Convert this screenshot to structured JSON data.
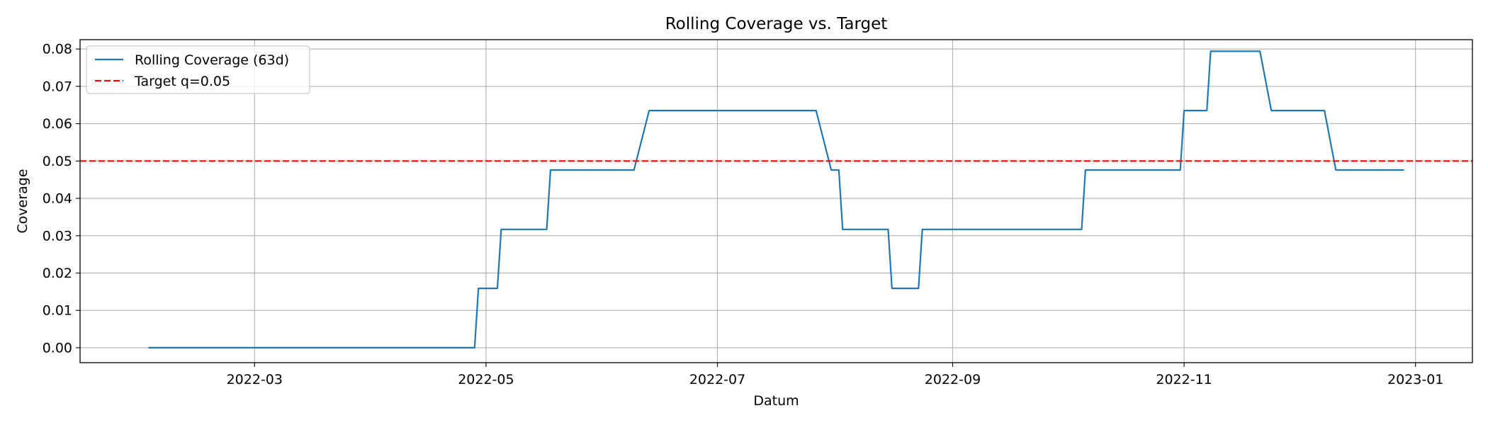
{
  "chart_data": {
    "type": "line",
    "title": "Rolling Coverage vs. Target",
    "xlabel": "Datum",
    "ylabel": "Coverage",
    "x_range": [
      "2022-01-14",
      "2023-01-16"
    ],
    "ylim": [
      -0.004,
      0.0825
    ],
    "x_ticks": [
      {
        "date": "2022-03-01",
        "label": "2022-03"
      },
      {
        "date": "2022-05-01",
        "label": "2022-05"
      },
      {
        "date": "2022-07-01",
        "label": "2022-07"
      },
      {
        "date": "2022-09-01",
        "label": "2022-09"
      },
      {
        "date": "2022-11-01",
        "label": "2022-11"
      },
      {
        "date": "2023-01-01",
        "label": "2023-01"
      }
    ],
    "y_ticks": [
      {
        "value": 0.0,
        "label": "0.00"
      },
      {
        "value": 0.01,
        "label": "0.01"
      },
      {
        "value": 0.02,
        "label": "0.02"
      },
      {
        "value": 0.03,
        "label": "0.03"
      },
      {
        "value": 0.04,
        "label": "0.04"
      },
      {
        "value": 0.05,
        "label": "0.05"
      },
      {
        "value": 0.06,
        "label": "0.06"
      },
      {
        "value": 0.07,
        "label": "0.07"
      },
      {
        "value": 0.08,
        "label": "0.08"
      }
    ],
    "grid": true,
    "legend_position": "top-left",
    "series": [
      {
        "name": "Rolling Coverage (63d)",
        "color": "#1f77b4",
        "style": "solid",
        "points": [
          [
            "2022-02-01",
            0.0
          ],
          [
            "2022-04-28",
            0.0
          ],
          [
            "2022-04-29",
            0.0159
          ],
          [
            "2022-05-04",
            0.0159
          ],
          [
            "2022-05-05",
            0.0317
          ],
          [
            "2022-05-17",
            0.0317
          ],
          [
            "2022-05-18",
            0.0476
          ],
          [
            "2022-06-09",
            0.0476
          ],
          [
            "2022-06-13",
            0.0635
          ],
          [
            "2022-07-27",
            0.0635
          ],
          [
            "2022-07-31",
            0.0476
          ],
          [
            "2022-08-02",
            0.0476
          ],
          [
            "2022-08-03",
            0.0317
          ],
          [
            "2022-08-15",
            0.0317
          ],
          [
            "2022-08-16",
            0.0159
          ],
          [
            "2022-08-23",
            0.0159
          ],
          [
            "2022-08-24",
            0.0317
          ],
          [
            "2022-10-05",
            0.0317
          ],
          [
            "2022-10-06",
            0.0476
          ],
          [
            "2022-10-31",
            0.0476
          ],
          [
            "2022-11-01",
            0.0635
          ],
          [
            "2022-11-07",
            0.0635
          ],
          [
            "2022-11-08",
            0.0794
          ],
          [
            "2022-11-21",
            0.0794
          ],
          [
            "2022-11-24",
            0.0635
          ],
          [
            "2022-12-08",
            0.0635
          ],
          [
            "2022-12-11",
            0.0476
          ],
          [
            "2022-12-29",
            0.0476
          ]
        ]
      },
      {
        "name": "Target q=0.05",
        "color": "#ff0000",
        "style": "dashed",
        "hline": 0.05
      }
    ]
  }
}
